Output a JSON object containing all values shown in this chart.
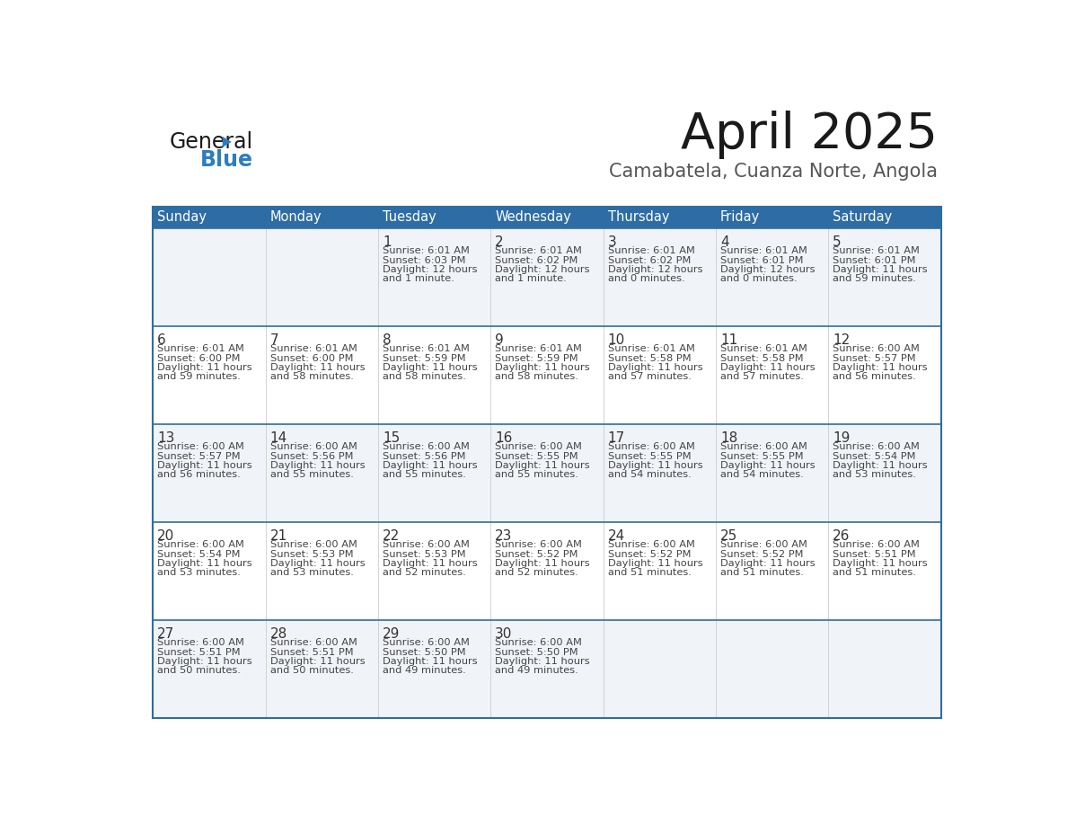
{
  "title": "April 2025",
  "subtitle": "Camabatela, Cuanza Norte, Angola",
  "header_bg_color": "#2E6DA4",
  "header_text_color": "#FFFFFF",
  "cell_bg_even": "#F0F4F8",
  "cell_bg_odd": "#FFFFFF",
  "cell_text_color": "#333333",
  "border_color": "#2E6DA4",
  "days_of_week": [
    "Sunday",
    "Monday",
    "Tuesday",
    "Wednesday",
    "Thursday",
    "Friday",
    "Saturday"
  ],
  "calendar_data": [
    [
      {
        "day": "",
        "sunrise": "",
        "sunset": "",
        "daylight_line1": "",
        "daylight_line2": ""
      },
      {
        "day": "",
        "sunrise": "",
        "sunset": "",
        "daylight_line1": "",
        "daylight_line2": ""
      },
      {
        "day": "1",
        "sunrise": "6:01 AM",
        "sunset": "6:03 PM",
        "daylight_line1": "12 hours",
        "daylight_line2": "and 1 minute."
      },
      {
        "day": "2",
        "sunrise": "6:01 AM",
        "sunset": "6:02 PM",
        "daylight_line1": "12 hours",
        "daylight_line2": "and 1 minute."
      },
      {
        "day": "3",
        "sunrise": "6:01 AM",
        "sunset": "6:02 PM",
        "daylight_line1": "12 hours",
        "daylight_line2": "and 0 minutes."
      },
      {
        "day": "4",
        "sunrise": "6:01 AM",
        "sunset": "6:01 PM",
        "daylight_line1": "12 hours",
        "daylight_line2": "and 0 minutes."
      },
      {
        "day": "5",
        "sunrise": "6:01 AM",
        "sunset": "6:01 PM",
        "daylight_line1": "11 hours",
        "daylight_line2": "and 59 minutes."
      }
    ],
    [
      {
        "day": "6",
        "sunrise": "6:01 AM",
        "sunset": "6:00 PM",
        "daylight_line1": "11 hours",
        "daylight_line2": "and 59 minutes."
      },
      {
        "day": "7",
        "sunrise": "6:01 AM",
        "sunset": "6:00 PM",
        "daylight_line1": "11 hours",
        "daylight_line2": "and 58 minutes."
      },
      {
        "day": "8",
        "sunrise": "6:01 AM",
        "sunset": "5:59 PM",
        "daylight_line1": "11 hours",
        "daylight_line2": "and 58 minutes."
      },
      {
        "day": "9",
        "sunrise": "6:01 AM",
        "sunset": "5:59 PM",
        "daylight_line1": "11 hours",
        "daylight_line2": "and 58 minutes."
      },
      {
        "day": "10",
        "sunrise": "6:01 AM",
        "sunset": "5:58 PM",
        "daylight_line1": "11 hours",
        "daylight_line2": "and 57 minutes."
      },
      {
        "day": "11",
        "sunrise": "6:01 AM",
        "sunset": "5:58 PM",
        "daylight_line1": "11 hours",
        "daylight_line2": "and 57 minutes."
      },
      {
        "day": "12",
        "sunrise": "6:00 AM",
        "sunset": "5:57 PM",
        "daylight_line1": "11 hours",
        "daylight_line2": "and 56 minutes."
      }
    ],
    [
      {
        "day": "13",
        "sunrise": "6:00 AM",
        "sunset": "5:57 PM",
        "daylight_line1": "11 hours",
        "daylight_line2": "and 56 minutes."
      },
      {
        "day": "14",
        "sunrise": "6:00 AM",
        "sunset": "5:56 PM",
        "daylight_line1": "11 hours",
        "daylight_line2": "and 55 minutes."
      },
      {
        "day": "15",
        "sunrise": "6:00 AM",
        "sunset": "5:56 PM",
        "daylight_line1": "11 hours",
        "daylight_line2": "and 55 minutes."
      },
      {
        "day": "16",
        "sunrise": "6:00 AM",
        "sunset": "5:55 PM",
        "daylight_line1": "11 hours",
        "daylight_line2": "and 55 minutes."
      },
      {
        "day": "17",
        "sunrise": "6:00 AM",
        "sunset": "5:55 PM",
        "daylight_line1": "11 hours",
        "daylight_line2": "and 54 minutes."
      },
      {
        "day": "18",
        "sunrise": "6:00 AM",
        "sunset": "5:55 PM",
        "daylight_line1": "11 hours",
        "daylight_line2": "and 54 minutes."
      },
      {
        "day": "19",
        "sunrise": "6:00 AM",
        "sunset": "5:54 PM",
        "daylight_line1": "11 hours",
        "daylight_line2": "and 53 minutes."
      }
    ],
    [
      {
        "day": "20",
        "sunrise": "6:00 AM",
        "sunset": "5:54 PM",
        "daylight_line1": "11 hours",
        "daylight_line2": "and 53 minutes."
      },
      {
        "day": "21",
        "sunrise": "6:00 AM",
        "sunset": "5:53 PM",
        "daylight_line1": "11 hours",
        "daylight_line2": "and 53 minutes."
      },
      {
        "day": "22",
        "sunrise": "6:00 AM",
        "sunset": "5:53 PM",
        "daylight_line1": "11 hours",
        "daylight_line2": "and 52 minutes."
      },
      {
        "day": "23",
        "sunrise": "6:00 AM",
        "sunset": "5:52 PM",
        "daylight_line1": "11 hours",
        "daylight_line2": "and 52 minutes."
      },
      {
        "day": "24",
        "sunrise": "6:00 AM",
        "sunset": "5:52 PM",
        "daylight_line1": "11 hours",
        "daylight_line2": "and 51 minutes."
      },
      {
        "day": "25",
        "sunrise": "6:00 AM",
        "sunset": "5:52 PM",
        "daylight_line1": "11 hours",
        "daylight_line2": "and 51 minutes."
      },
      {
        "day": "26",
        "sunrise": "6:00 AM",
        "sunset": "5:51 PM",
        "daylight_line1": "11 hours",
        "daylight_line2": "and 51 minutes."
      }
    ],
    [
      {
        "day": "27",
        "sunrise": "6:00 AM",
        "sunset": "5:51 PM",
        "daylight_line1": "11 hours",
        "daylight_line2": "and 50 minutes."
      },
      {
        "day": "28",
        "sunrise": "6:00 AM",
        "sunset": "5:51 PM",
        "daylight_line1": "11 hours",
        "daylight_line2": "and 50 minutes."
      },
      {
        "day": "29",
        "sunrise": "6:00 AM",
        "sunset": "5:50 PM",
        "daylight_line1": "11 hours",
        "daylight_line2": "and 49 minutes."
      },
      {
        "day": "30",
        "sunrise": "6:00 AM",
        "sunset": "5:50 PM",
        "daylight_line1": "11 hours",
        "daylight_line2": "and 49 minutes."
      },
      {
        "day": "",
        "sunrise": "",
        "sunset": "",
        "daylight_line1": "",
        "daylight_line2": ""
      },
      {
        "day": "",
        "sunrise": "",
        "sunset": "",
        "daylight_line1": "",
        "daylight_line2": ""
      },
      {
        "day": "",
        "sunrise": "",
        "sunset": "",
        "daylight_line1": "",
        "daylight_line2": ""
      }
    ]
  ]
}
